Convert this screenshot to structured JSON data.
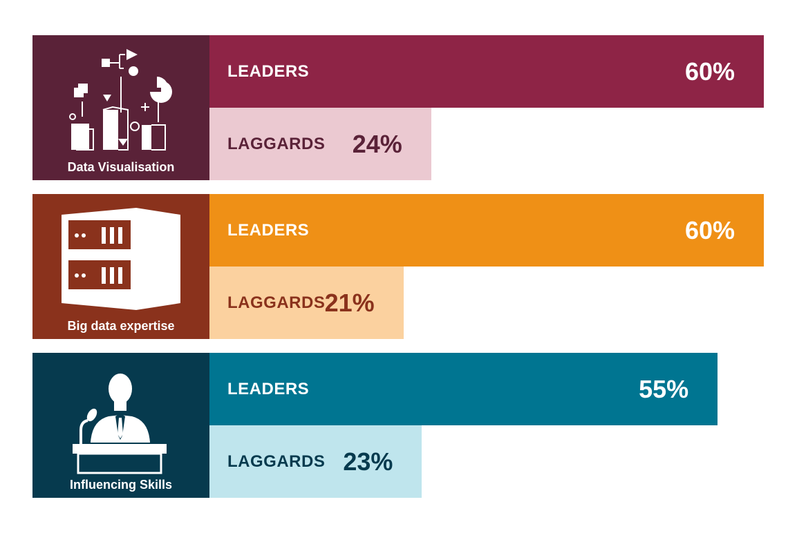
{
  "chart_data": {
    "type": "bar",
    "orientation": "horizontal",
    "categories": [
      "Data Visualisation",
      "Big data expertise",
      "Influencing Skills"
    ],
    "series": [
      {
        "name": "LEADERS",
        "values": [
          60,
          60,
          55
        ]
      },
      {
        "name": "LAGGARDS",
        "values": [
          24,
          21,
          23
        ]
      }
    ],
    "value_labels": {
      "leaders": [
        "60%",
        "60%",
        "55%"
      ],
      "laggards": [
        "24%",
        "21%",
        "23%"
      ]
    },
    "xlim": [
      0,
      60
    ],
    "grid": false,
    "legend": "none"
  },
  "groups": [
    {
      "category": "Data Visualisation",
      "icon": "data-visualisation-icon",
      "panel_color": "#5a2238",
      "leaders": {
        "label": "LEADERS",
        "value": 60,
        "value_label": "60%",
        "bar_color": "#8e2446",
        "label_color": "#ffffff",
        "value_color": "#ffffff"
      },
      "laggards": {
        "label": "LAGGARDS",
        "value": 24,
        "value_label": "24%",
        "bar_color": "#ebc9d1",
        "label_color": "#5a2238",
        "value_color": "#5a2238"
      }
    },
    {
      "category": "Big data expertise",
      "icon": "server-rack-icon",
      "panel_color": "#8a321c",
      "leaders": {
        "label": "LEADERS",
        "value": 60,
        "value_label": "60%",
        "bar_color": "#ef9016",
        "label_color": "#ffffff",
        "value_color": "#ffffff"
      },
      "laggards": {
        "label": "LAGGARDS",
        "value": 21,
        "value_label": "21%",
        "bar_color": "#fbd19f",
        "label_color": "#8a321c",
        "value_color": "#8a321c"
      }
    },
    {
      "category": "Influencing Skills",
      "icon": "speaker-podium-icon",
      "panel_color": "#063a4e",
      "leaders": {
        "label": "LEADERS",
        "value": 55,
        "value_label": "55%",
        "bar_color": "#007591",
        "label_color": "#ffffff",
        "value_color": "#ffffff"
      },
      "laggards": {
        "label": "LAGGARDS",
        "value": 23,
        "value_label": "23%",
        "bar_color": "#bfe5ed",
        "label_color": "#063a4e",
        "value_color": "#063a4e"
      }
    }
  ]
}
